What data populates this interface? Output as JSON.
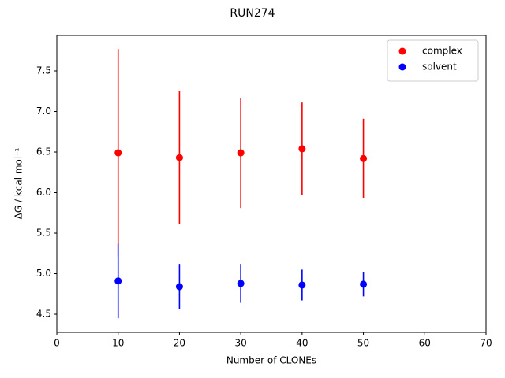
{
  "chart_data": {
    "type": "errorbar-scatter",
    "title": "RUN274",
    "x_label": "Number of CLONEs",
    "y_label": "ΔG / kcal mol⁻¹",
    "x": [
      10,
      20,
      30,
      40,
      50
    ],
    "series": [
      {
        "name": "complex",
        "color": "#ff0000",
        "values": [
          6.49,
          6.43,
          6.49,
          6.54,
          6.42
        ],
        "errors": [
          1.28,
          0.82,
          0.68,
          0.57,
          0.49
        ]
      },
      {
        "name": "solvent",
        "color": "#0000ff",
        "values": [
          4.91,
          4.84,
          4.88,
          4.86,
          4.87
        ],
        "errors": [
          0.46,
          0.28,
          0.24,
          0.19,
          0.15
        ]
      }
    ],
    "xlim": [
      0,
      70
    ],
    "xticks": [
      0,
      10,
      20,
      30,
      40,
      50,
      60,
      70
    ],
    "ylim": [
      4.277,
      7.937
    ],
    "yticks": [
      4.5,
      {
        "value": 5,
        "label": "5.0"
      },
      5.5,
      {
        "value": 6,
        "label": "6.0"
      },
      6.5,
      {
        "value": 7,
        "label": "7.0"
      },
      7.5
    ],
    "legend": "upper right"
  }
}
